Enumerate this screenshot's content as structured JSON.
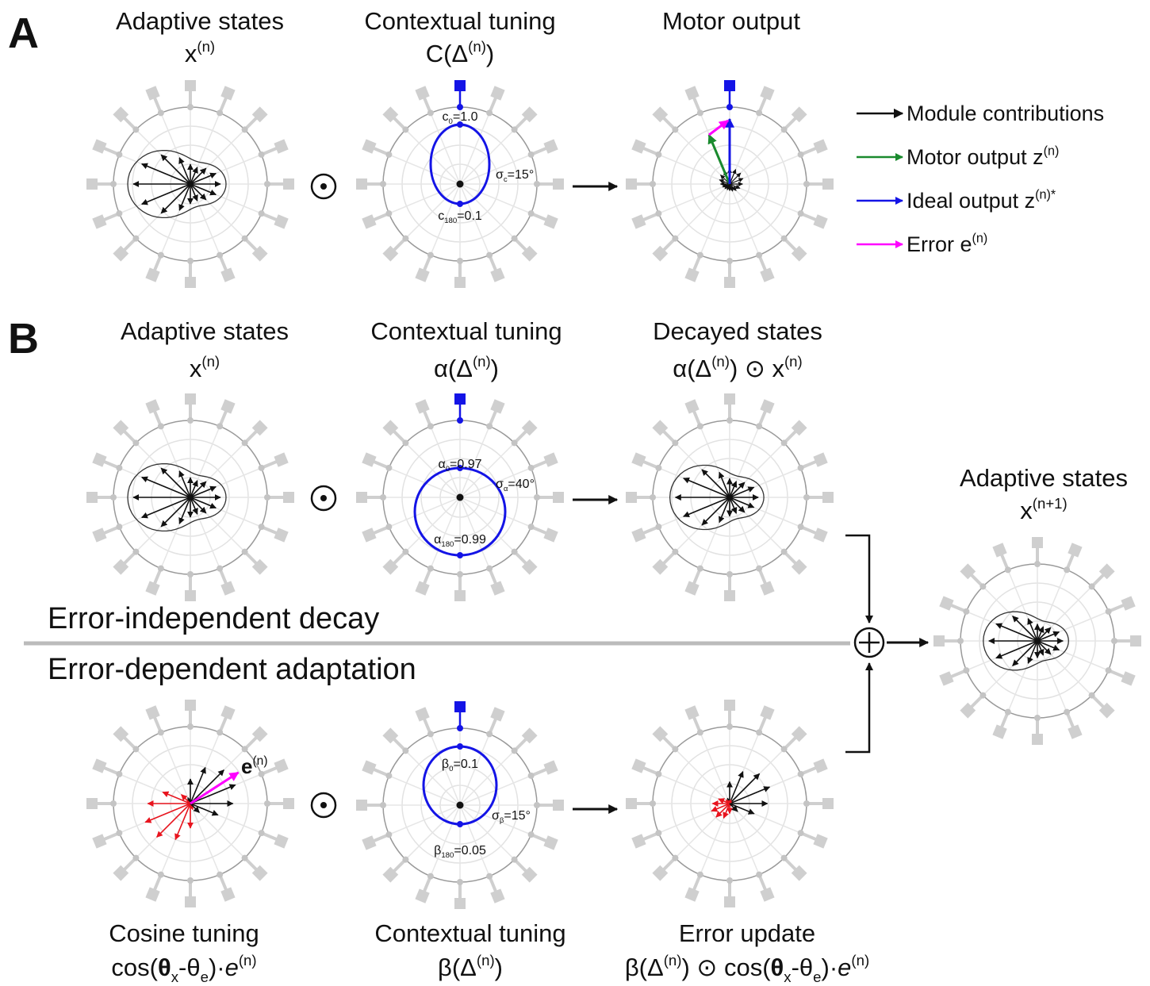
{
  "panel_labels": [
    "A",
    "B"
  ],
  "titles": [
    {
      "line1": "Adaptive states",
      "line2": [
        {
          "t": "x"
        },
        {
          "sup": "(n)"
        }
      ]
    },
    {
      "line1": "Contextual tuning",
      "line2": [
        {
          "t": "C(Δ"
        },
        {
          "sup": "(n)"
        },
        {
          "t": ")"
        }
      ]
    },
    {
      "line1": "Motor output"
    },
    {
      "line1": "Adaptive states",
      "line2": [
        {
          "t": "x"
        },
        {
          "sup": "(n)"
        }
      ]
    },
    {
      "line1": "Contextual tuning",
      "line2": [
        {
          "t": "α(Δ"
        },
        {
          "sup": "(n)"
        },
        {
          "t": ")"
        }
      ]
    },
    {
      "line1": "Decayed states",
      "line2": [
        {
          "t": "α(Δ"
        },
        {
          "sup": "(n)"
        },
        {
          "t": ") ⊙ x"
        },
        {
          "sup": "(n)"
        }
      ]
    },
    {
      "line1": "Adaptive states",
      "line2": [
        {
          "t": "x"
        },
        {
          "sup": "(n+1)"
        }
      ]
    },
    {
      "line1": "Cosine tuning",
      "line2": [
        {
          "t": "cos("
        },
        {
          "bold": "θ"
        },
        {
          "sub": "x"
        },
        {
          "t": "-θ"
        },
        {
          "sub": "e"
        },
        {
          "t": ")·"
        },
        {
          "ital": "e"
        },
        {
          "sup": "(n)"
        }
      ]
    },
    {
      "line1": "Contextual tuning",
      "line2": [
        {
          "t": "β(Δ"
        },
        {
          "sup": "(n)"
        },
        {
          "t": ")"
        }
      ]
    },
    {
      "line1": "Error update",
      "line2": [
        {
          "t": "β(Δ"
        },
        {
          "sup": "(n)"
        },
        {
          "t": ") ⊙ cos("
        },
        {
          "bold": "θ"
        },
        {
          "sub": "x"
        },
        {
          "t": "-θ"
        },
        {
          "sub": "e"
        },
        {
          "t": ")·"
        },
        {
          "ital": "e"
        },
        {
          "sup": "(n)"
        }
      ]
    }
  ],
  "legend": [
    {
      "label": "Module contributions",
      "color": "#111111"
    },
    {
      "label": [
        {
          "t": "Motor output z"
        },
        {
          "sup": "(n)"
        }
      ],
      "color": "#1a8a2e"
    },
    {
      "label": [
        {
          "t": "Ideal output z"
        },
        {
          "sup": "(n)*"
        }
      ],
      "color": "#1414e6"
    },
    {
      "label": [
        {
          "t": "Error  e"
        },
        {
          "sup": "(n)"
        }
      ],
      "color": "#ff00ff"
    }
  ],
  "annotations": [
    [
      {
        "t": "c"
      },
      {
        "sub": "0"
      },
      {
        "t": "=1.0"
      }
    ],
    [
      {
        "t": "σ"
      },
      {
        "sub": "c"
      },
      {
        "t": "=15°"
      }
    ],
    [
      {
        "t": "c"
      },
      {
        "sub": "180"
      },
      {
        "t": "=0.1"
      }
    ],
    [
      {
        "t": "α"
      },
      {
        "sub": "0"
      },
      {
        "t": "=0.97"
      }
    ],
    [
      {
        "t": "σ"
      },
      {
        "sub": "α"
      },
      {
        "t": "=40°"
      }
    ],
    [
      {
        "t": "α"
      },
      {
        "sub": "180"
      },
      {
        "t": "=0.99"
      }
    ],
    [
      {
        "t": "β"
      },
      {
        "sub": "0"
      },
      {
        "t": "=0.1"
      }
    ],
    [
      {
        "t": "σ"
      },
      {
        "sub": "β"
      },
      {
        "t": "=15°"
      }
    ],
    [
      {
        "t": "β"
      },
      {
        "sub": "180"
      },
      {
        "t": "=0.05"
      }
    ]
  ],
  "error_label": [
    {
      "bold": "e"
    },
    {
      "sup": "(n)"
    }
  ],
  "sections": [
    "Error-independent decay",
    "Error-dependent adaptation"
  ]
}
